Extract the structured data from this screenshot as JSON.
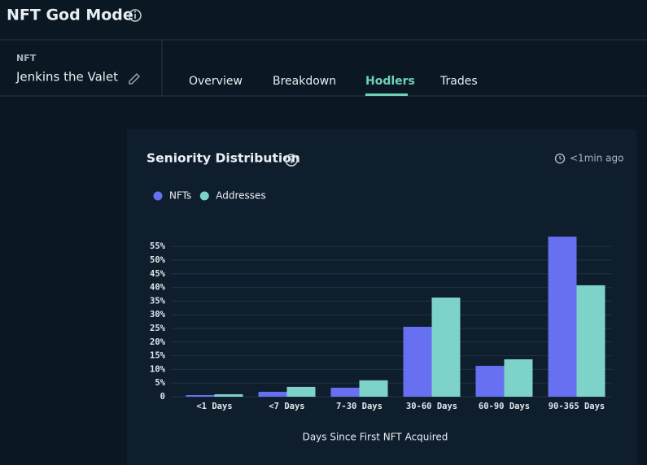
{
  "header": {
    "title": "NFT God Mode"
  },
  "nft": {
    "label": "NFT",
    "name": "Jenkins the Valet"
  },
  "tabs": [
    "Overview",
    "Breakdown",
    "Hodlers",
    "Trades"
  ],
  "card": {
    "updated": "<1min ago"
  },
  "chart_data": {
    "type": "bar",
    "title": "Seniority Distribution",
    "x_label": "Days Since First NFT Acquired",
    "categories": [
      "<1 Days",
      "<7 Days",
      "7-30 Days",
      "30-60 Days",
      "60-90 Days",
      "90-365 Days"
    ],
    "series": [
      {
        "name": "NFTs",
        "color": "#6670f0",
        "values": [
          0.6,
          1.8,
          3.3,
          25.6,
          11.3,
          58.6
        ]
      },
      {
        "name": "Addresses",
        "color": "#7dd3c8",
        "values": [
          0.9,
          3.6,
          6.0,
          36.3,
          13.7,
          40.8
        ]
      }
    ],
    "ylim": [
      0,
      60
    ],
    "yticks": [
      {
        "value": 0,
        "label": "0"
      },
      {
        "value": 5,
        "label": "5%"
      },
      {
        "value": 10,
        "label": "10%"
      },
      {
        "value": 15,
        "label": "15%"
      },
      {
        "value": 20,
        "label": "20%"
      },
      {
        "value": 25,
        "label": "25%"
      },
      {
        "value": 30,
        "label": "30%"
      },
      {
        "value": 35,
        "label": "35%"
      },
      {
        "value": 40,
        "label": "40%"
      },
      {
        "value": 45,
        "label": "45%"
      },
      {
        "value": 50,
        "label": "50%"
      },
      {
        "value": 55,
        "label": "55%"
      }
    ],
    "grid": true
  }
}
